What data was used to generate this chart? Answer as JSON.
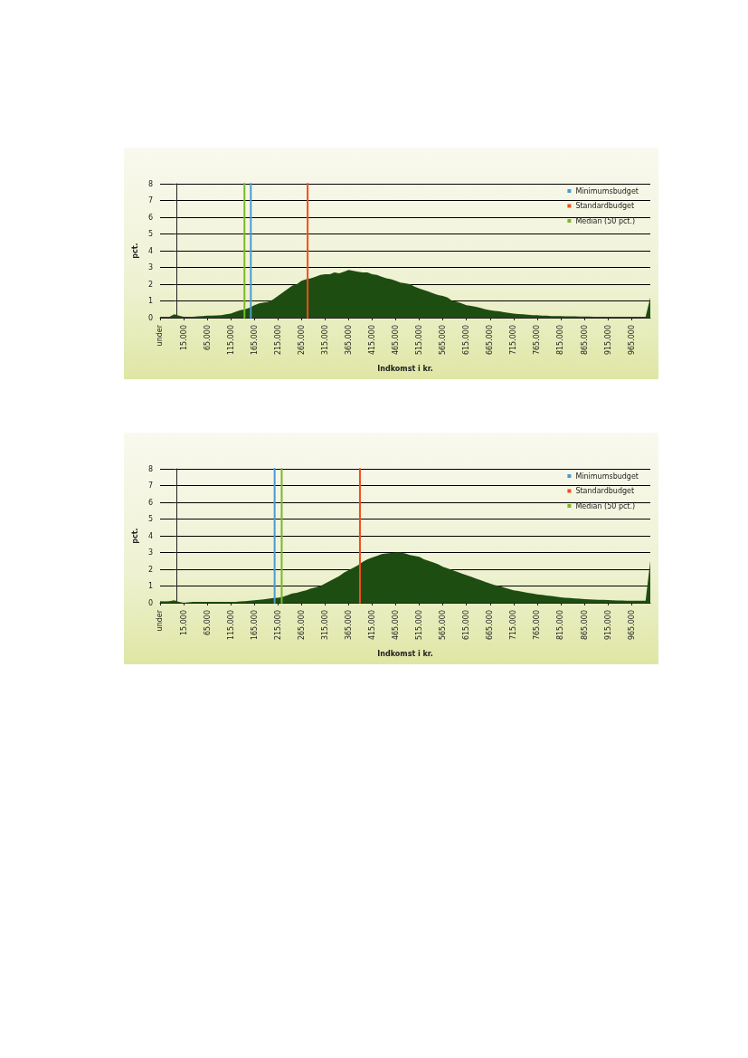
{
  "chart_data": [
    {
      "type": "area",
      "xlabel": "Indkomst i kr.",
      "ylabel": "pct.",
      "ylim": [
        0,
        8
      ],
      "yticks": [
        0,
        1,
        2,
        3,
        4,
        5,
        6,
        7,
        8
      ],
      "xlim": [
        -35000,
        1005000
      ],
      "xticks": [
        {
          "value": -35000,
          "label": "under"
        },
        {
          "value": 15000,
          "label": "15.000"
        },
        {
          "value": 65000,
          "label": "65.000"
        },
        {
          "value": 115000,
          "label": "115.000"
        },
        {
          "value": 165000,
          "label": "165.000"
        },
        {
          "value": 215000,
          "label": "215.000"
        },
        {
          "value": 265000,
          "label": "265.000"
        },
        {
          "value": 315000,
          "label": "315.000"
        },
        {
          "value": 365000,
          "label": "365.000"
        },
        {
          "value": 415000,
          "label": "415.000"
        },
        {
          "value": 465000,
          "label": "465.000"
        },
        {
          "value": 515000,
          "label": "515.000"
        },
        {
          "value": 565000,
          "label": "565.000"
        },
        {
          "value": 615000,
          "label": "615.000"
        },
        {
          "value": 665000,
          "label": "665.000"
        },
        {
          "value": 715000,
          "label": "715.000"
        },
        {
          "value": 765000,
          "label": "765.000"
        },
        {
          "value": 815000,
          "label": "815.000"
        },
        {
          "value": 865000,
          "label": "865.000"
        },
        {
          "value": 915000,
          "label": "915.000"
        },
        {
          "value": 965000,
          "label": "965.000"
        }
      ],
      "grid": "y",
      "legend": "top right",
      "x": [
        -35000,
        -25000,
        -15000,
        -5000,
        5000,
        15000,
        25000,
        35000,
        45000,
        55000,
        65000,
        75000,
        85000,
        95000,
        105000,
        115000,
        125000,
        135000,
        145000,
        155000,
        165000,
        175000,
        185000,
        195000,
        205000,
        215000,
        225000,
        235000,
        245000,
        255000,
        265000,
        275000,
        285000,
        295000,
        305000,
        315000,
        325000,
        335000,
        345000,
        355000,
        365000,
        375000,
        385000,
        395000,
        405000,
        415000,
        425000,
        435000,
        445000,
        455000,
        465000,
        475000,
        485000,
        495000,
        505000,
        515000,
        525000,
        535000,
        545000,
        555000,
        565000,
        575000,
        585000,
        595000,
        605000,
        615000,
        625000,
        635000,
        645000,
        655000,
        665000,
        675000,
        685000,
        695000,
        705000,
        715000,
        725000,
        735000,
        745000,
        755000,
        765000,
        775000,
        785000,
        795000,
        805000,
        815000,
        825000,
        835000,
        845000,
        855000,
        865000,
        875000,
        885000,
        895000,
        905000,
        915000,
        925000,
        935000,
        945000,
        955000,
        965000,
        975000,
        985000,
        995000,
        1005000
      ],
      "series": [
        {
          "color": "#1e4d12",
          "values": [
            0.05,
            0.05,
            0.05,
            0.2,
            0.12,
            0.05,
            0.05,
            0.05,
            0.08,
            0.1,
            0.12,
            0.12,
            0.13,
            0.15,
            0.2,
            0.25,
            0.35,
            0.45,
            0.5,
            0.6,
            0.75,
            0.85,
            0.9,
            0.95,
            1.1,
            1.3,
            1.5,
            1.7,
            1.9,
            2.0,
            2.2,
            2.3,
            2.35,
            2.45,
            2.55,
            2.6,
            2.6,
            2.7,
            2.65,
            2.75,
            2.85,
            2.8,
            2.75,
            2.7,
            2.7,
            2.6,
            2.55,
            2.45,
            2.35,
            2.3,
            2.2,
            2.1,
            2.05,
            2.0,
            1.85,
            1.75,
            1.65,
            1.55,
            1.45,
            1.35,
            1.3,
            1.2,
            1.0,
            0.95,
            0.85,
            0.75,
            0.7,
            0.65,
            0.58,
            0.5,
            0.45,
            0.4,
            0.38,
            0.32,
            0.28,
            0.25,
            0.22,
            0.2,
            0.18,
            0.15,
            0.15,
            0.12,
            0.12,
            0.1,
            0.1,
            0.1,
            0.08,
            0.08,
            0.08,
            0.07,
            0.07,
            0.07,
            0.06,
            0.06,
            0.06,
            0.05,
            0.05,
            0.06,
            0.05,
            0.05,
            0.05,
            0.05,
            0.05,
            0.05,
            1.2
          ]
        },
        {
          "type": "line",
          "name": "Minimumsbudget",
          "color": "#4a9bd1",
          "x": [
            157500,
            157500
          ],
          "values": [
            0,
            8
          ]
        },
        {
          "type": "line",
          "name": "Standardbudget",
          "color": "#f04e1c",
          "x": [
            278000,
            278000
          ],
          "values": [
            0,
            8
          ]
        },
        {
          "type": "line",
          "name": "Median (50 pct.)",
          "color": "#7ab929",
          "x": [
            144000,
            144000
          ],
          "values": [
            0,
            8
          ]
        }
      ]
    },
    {
      "type": "area",
      "xlabel": "Indkomst i kr.",
      "ylabel": "pct.",
      "ylim": [
        0,
        8
      ],
      "yticks": [
        0,
        1,
        2,
        3,
        4,
        5,
        6,
        7,
        8
      ],
      "xlim": [
        -35000,
        1005000
      ],
      "xticks": [
        {
          "value": -35000,
          "label": "under"
        },
        {
          "value": 15000,
          "label": "15.000"
        },
        {
          "value": 65000,
          "label": "65.000"
        },
        {
          "value": 115000,
          "label": "115.000"
        },
        {
          "value": 165000,
          "label": "165.000"
        },
        {
          "value": 215000,
          "label": "215.000"
        },
        {
          "value": 265000,
          "label": "265.000"
        },
        {
          "value": 315000,
          "label": "315.000"
        },
        {
          "value": 365000,
          "label": "365.000"
        },
        {
          "value": 415000,
          "label": "415.000"
        },
        {
          "value": 465000,
          "label": "465.000"
        },
        {
          "value": 515000,
          "label": "515.000"
        },
        {
          "value": 565000,
          "label": "565.000"
        },
        {
          "value": 615000,
          "label": "615.000"
        },
        {
          "value": 665000,
          "label": "665.000"
        },
        {
          "value": 715000,
          "label": "715.000"
        },
        {
          "value": 765000,
          "label": "765.000"
        },
        {
          "value": 815000,
          "label": "815.000"
        },
        {
          "value": 865000,
          "label": "865.000"
        },
        {
          "value": 915000,
          "label": "915.000"
        },
        {
          "value": 965000,
          "label": "965.000"
        }
      ],
      "grid": "y",
      "legend": "top right",
      "x": [
        -35000,
        -25000,
        -15000,
        -5000,
        5000,
        15000,
        25000,
        35000,
        45000,
        55000,
        65000,
        75000,
        85000,
        95000,
        105000,
        115000,
        125000,
        135000,
        145000,
        155000,
        165000,
        175000,
        185000,
        195000,
        205000,
        215000,
        225000,
        235000,
        245000,
        255000,
        265000,
        275000,
        285000,
        295000,
        305000,
        315000,
        325000,
        335000,
        345000,
        355000,
        365000,
        375000,
        385000,
        395000,
        405000,
        415000,
        425000,
        435000,
        445000,
        455000,
        465000,
        475000,
        485000,
        495000,
        505000,
        515000,
        525000,
        535000,
        545000,
        555000,
        565000,
        575000,
        585000,
        595000,
        605000,
        615000,
        625000,
        635000,
        645000,
        655000,
        665000,
        675000,
        685000,
        695000,
        705000,
        715000,
        725000,
        735000,
        745000,
        755000,
        765000,
        775000,
        785000,
        795000,
        805000,
        815000,
        825000,
        835000,
        845000,
        855000,
        865000,
        875000,
        885000,
        895000,
        905000,
        915000,
        925000,
        935000,
        945000,
        955000,
        965000,
        975000,
        985000,
        995000,
        1005000
      ],
      "series": [
        {
          "color": "#1e4d12",
          "values": [
            0.1,
            0.08,
            0.1,
            0.15,
            0.05,
            0.0,
            0.03,
            0.05,
            0.05,
            0.05,
            0.05,
            0.05,
            0.05,
            0.05,
            0.05,
            0.05,
            0.05,
            0.08,
            0.1,
            0.12,
            0.15,
            0.18,
            0.2,
            0.25,
            0.28,
            0.3,
            0.35,
            0.45,
            0.55,
            0.6,
            0.68,
            0.75,
            0.85,
            0.92,
            1.0,
            1.15,
            1.3,
            1.45,
            1.6,
            1.8,
            1.95,
            2.1,
            2.25,
            2.45,
            2.6,
            2.7,
            2.8,
            2.9,
            2.95,
            2.97,
            3.0,
            3.0,
            2.95,
            2.85,
            2.8,
            2.75,
            2.6,
            2.5,
            2.4,
            2.3,
            2.15,
            2.05,
            1.95,
            1.85,
            1.75,
            1.65,
            1.55,
            1.45,
            1.35,
            1.25,
            1.15,
            1.05,
            1.0,
            0.9,
            0.82,
            0.75,
            0.7,
            0.65,
            0.6,
            0.55,
            0.5,
            0.47,
            0.43,
            0.4,
            0.37,
            0.33,
            0.3,
            0.28,
            0.26,
            0.24,
            0.22,
            0.2,
            0.19,
            0.18,
            0.17,
            0.16,
            0.15,
            0.14,
            0.13,
            0.12,
            0.12,
            0.12,
            0.12,
            0.12,
            2.5
          ]
        },
        {
          "type": "line",
          "name": "Minimumsbudget",
          "color": "#4a9bd1",
          "x": [
            208000,
            208000
          ],
          "values": [
            0,
            8
          ]
        },
        {
          "type": "line",
          "name": "Standardbudget",
          "color": "#f04e1c",
          "x": [
            389000,
            389000
          ],
          "values": [
            0,
            8
          ]
        },
        {
          "type": "line",
          "name": "Median (50 pct.)",
          "color": "#7ab929",
          "x": [
            223000,
            223000
          ],
          "values": [
            0,
            8
          ]
        }
      ]
    }
  ]
}
